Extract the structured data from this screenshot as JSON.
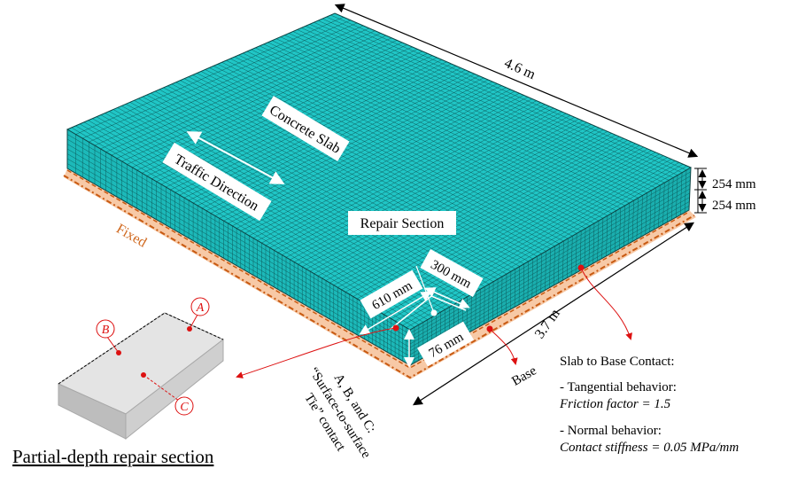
{
  "labels": {
    "length": "4.6 m",
    "width": "3.7 m",
    "slab_thickness": "254 mm",
    "base_thickness": "254 mm",
    "concrete_slab": "Concrete Slab",
    "traffic_direction": "Traffic Direction",
    "repair_section": "Repair Section",
    "repair_length": "300 mm",
    "repair_width": "610 mm",
    "repair_depth": "76 mm",
    "fixed": "Fixed",
    "base": "Base"
  },
  "contact": {
    "title": "Slab to Base Contact:",
    "tangential": "- Tangential behavior:",
    "friction": "Friction factor = 1.5",
    "normal": "- Normal behavior:",
    "stiffness": "Contact stiffness = 0.05 MPa/mm"
  },
  "tie_note": {
    "line1": "A, B, and C:",
    "line2": "“Surface-to-surface",
    "line3": "Tie” contact"
  },
  "inset": {
    "point_a": "A",
    "point_b": "B",
    "point_c": "C",
    "caption": "Partial-depth repair section"
  },
  "colors": {
    "mesh_fill": "#20c6c6",
    "mesh_line": "#0b5555",
    "base_fill": "#f7c9a6",
    "base_dash": "#c85a12",
    "fixed_text": "#d0681e",
    "marker_red": "#dd1111"
  }
}
